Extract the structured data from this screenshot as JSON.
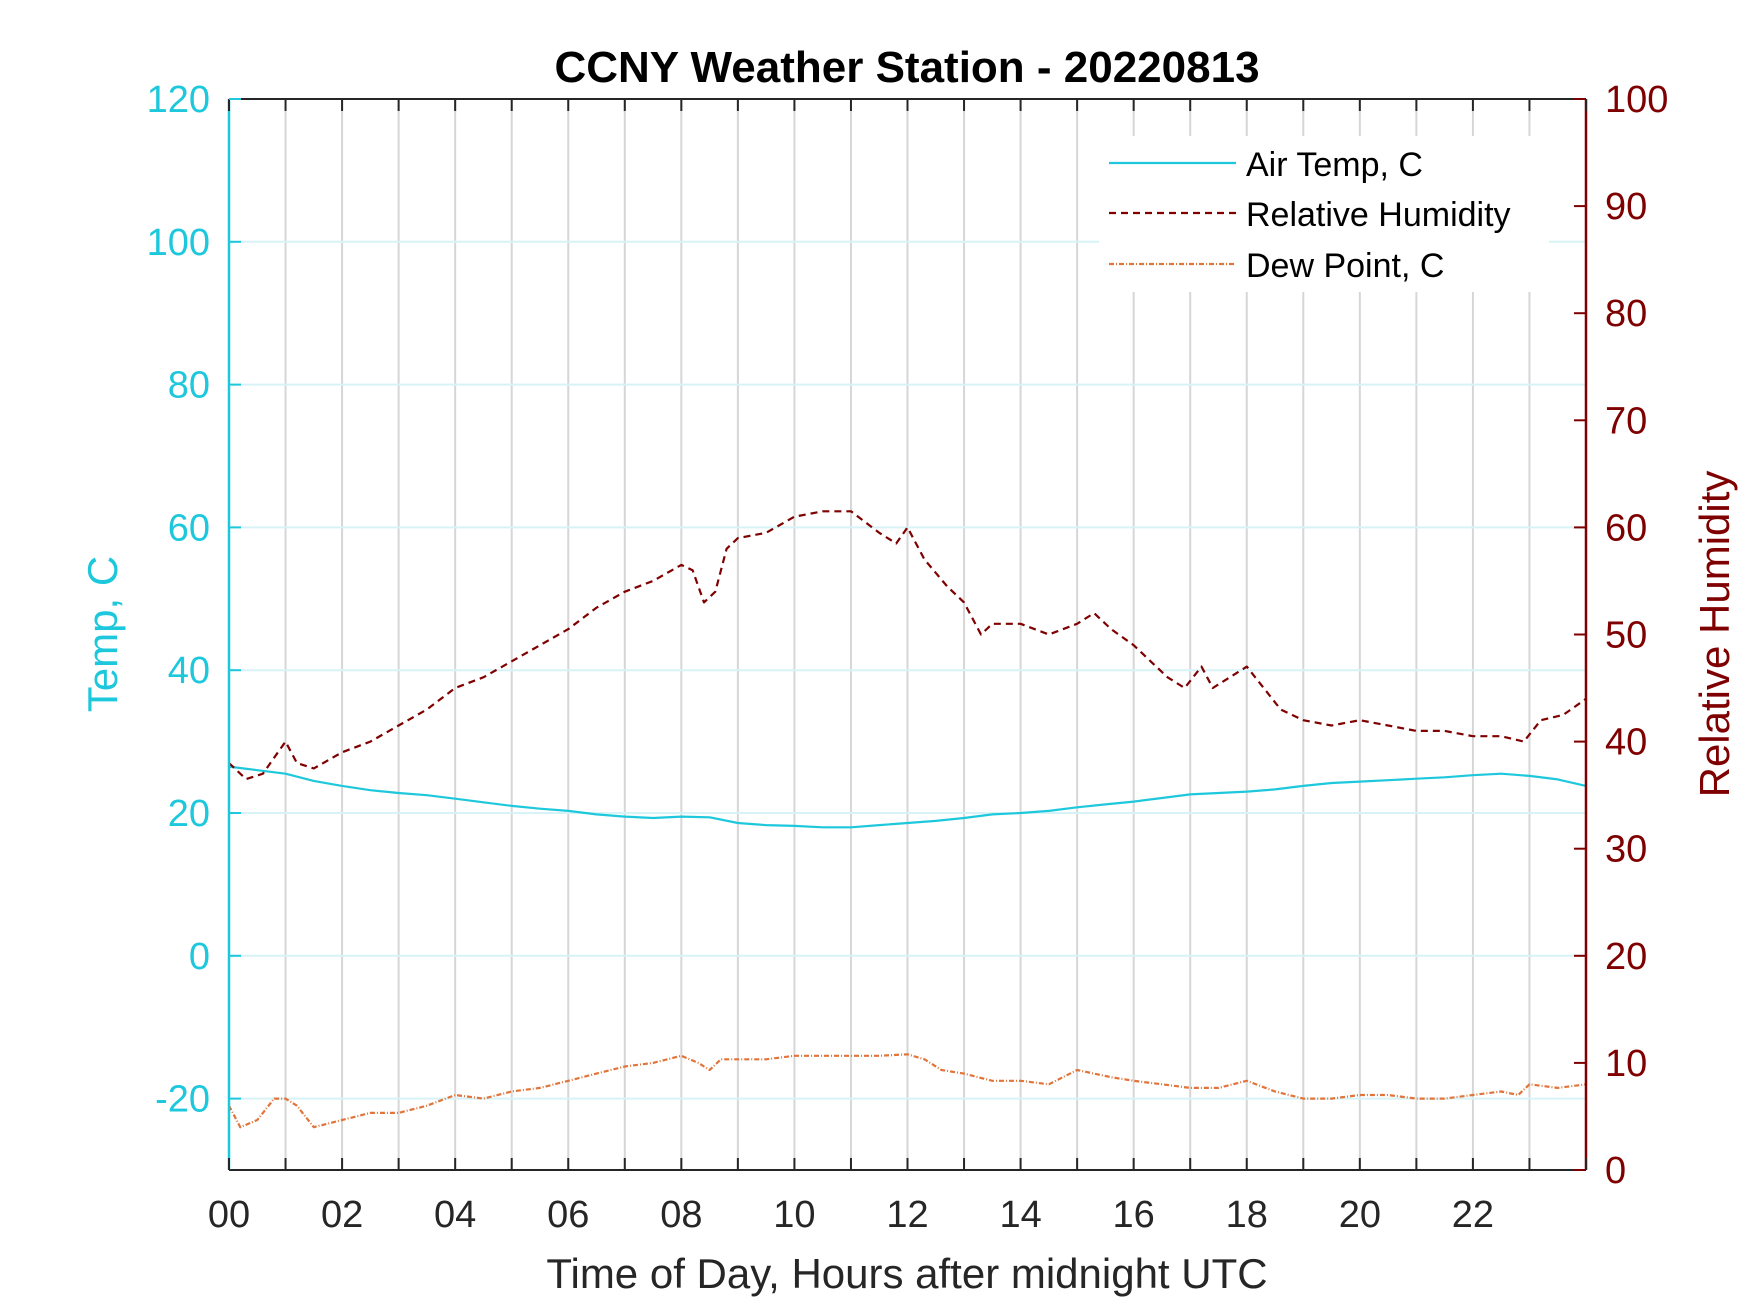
{
  "colors": {
    "air_temp": "#1ec8dc",
    "humidity": "#7f0000",
    "dew_point": "#e0743a",
    "vgrid": "#d6d6d6",
    "hgrid": "#d8f3f8",
    "axis_x": "#262626"
  },
  "chart_data": {
    "type": "line",
    "title": "CCNY Weather Station - 20220813",
    "xlabel": "Time of Day, Hours after midnight UTC",
    "ylabel_left": "Temp, C",
    "ylabel_right": "Relative Humidity",
    "xlim": [
      0,
      24
    ],
    "ylim_left": [
      -30,
      120
    ],
    "ylim_right": [
      0,
      100
    ],
    "x_ticks": [
      "00",
      "02",
      "04",
      "06",
      "08",
      "10",
      "12",
      "14",
      "16",
      "18",
      "20",
      "22"
    ],
    "y_left_ticks": [
      "-20",
      "0",
      "20",
      "40",
      "60",
      "80",
      "100",
      "120"
    ],
    "y_right_ticks": [
      "0",
      "10",
      "20",
      "30",
      "40",
      "50",
      "60",
      "70",
      "80",
      "90",
      "100"
    ],
    "grid": "vertical lines each hour, horizontal lines at left-axis ticks",
    "legend_position": "top-right",
    "series": [
      {
        "name": "Air Temp, C",
        "axis": "left",
        "style": "solid",
        "x": [
          0,
          0.5,
          1,
          1.5,
          2,
          2.5,
          3,
          3.5,
          4,
          4.5,
          5,
          5.5,
          6,
          6.5,
          7,
          7.5,
          8,
          8.5,
          9,
          9.5,
          10,
          10.5,
          11,
          11.5,
          12,
          12.5,
          13,
          13.5,
          14,
          14.5,
          15,
          15.5,
          16,
          16.5,
          17,
          17.5,
          18,
          18.5,
          19,
          19.5,
          20,
          20.5,
          21,
          21.5,
          22,
          22.5,
          23,
          23.5,
          24
        ],
        "values": [
          26.5,
          26,
          25.5,
          24.5,
          23.8,
          23.2,
          22.8,
          22.5,
          22,
          21.5,
          21,
          20.6,
          20.3,
          19.8,
          19.5,
          19.3,
          19.5,
          19.4,
          18.6,
          18.3,
          18.2,
          18,
          18,
          18.3,
          18.6,
          18.9,
          19.3,
          19.8,
          20,
          20.3,
          20.8,
          21.2,
          21.6,
          22.1,
          22.6,
          22.8,
          23,
          23.3,
          23.8,
          24.2,
          24.4,
          24.6,
          24.8,
          25,
          25.3,
          25.5,
          25.2,
          24.7,
          23.8
        ]
      },
      {
        "name": "Relative Humidity",
        "axis": "right",
        "style": "dashed",
        "x": [
          0,
          0.3,
          0.6,
          1,
          1.2,
          1.5,
          2,
          2.5,
          3,
          3.5,
          4,
          4.5,
          5,
          5.5,
          6,
          6.5,
          7,
          7.5,
          8,
          8.2,
          8.4,
          8.6,
          8.8,
          9,
          9.5,
          10,
          10.5,
          11,
          11.5,
          11.8,
          12,
          12.3,
          12.7,
          13,
          13.3,
          13.5,
          14,
          14.5,
          15,
          15.3,
          15.6,
          16,
          16.3,
          16.6,
          16.9,
          17.2,
          17.4,
          17.7,
          18,
          18.3,
          18.6,
          19,
          19.5,
          20,
          20.5,
          21,
          21.5,
          22,
          22.5,
          22.9,
          23.2,
          23.6,
          24
        ],
        "values": [
          38,
          36.5,
          37,
          40,
          38,
          37.5,
          39,
          40,
          41.5,
          43,
          45,
          46,
          47.5,
          49,
          50.5,
          52.5,
          54,
          55,
          56.5,
          56,
          53,
          54,
          58,
          59,
          59.5,
          61,
          61.5,
          61.5,
          59.5,
          58.5,
          60,
          57,
          54.5,
          53,
          50,
          51,
          51,
          50,
          51,
          52,
          50.5,
          49,
          47.5,
          46,
          45,
          47,
          45,
          46,
          47,
          45,
          43,
          42,
          41.5,
          42,
          41.5,
          41,
          41,
          40.5,
          40.5,
          40,
          42,
          42.5,
          44
        ]
      },
      {
        "name": "Dew Point, C",
        "axis": "left",
        "style": "dashdot",
        "x": [
          0,
          0.2,
          0.5,
          0.8,
          1,
          1.2,
          1.5,
          2,
          2.5,
          3,
          3.5,
          4,
          4.5,
          5,
          5.5,
          6,
          6.5,
          7,
          7.5,
          8,
          8.3,
          8.5,
          8.7,
          9,
          9.5,
          10,
          10.5,
          11,
          11.5,
          12,
          12.3,
          12.6,
          13,
          13.5,
          14,
          14.5,
          15,
          15.3,
          15.6,
          16,
          16.5,
          17,
          17.5,
          18,
          18.5,
          19,
          19.5,
          20,
          20.5,
          21,
          21.5,
          22,
          22.5,
          22.8,
          23,
          23.5,
          24
        ],
        "values": [
          -21,
          -24,
          -23,
          -20,
          -20,
          -21,
          -24,
          -23,
          -22,
          -22,
          -21,
          -19.5,
          -20,
          -19,
          -18.5,
          -17.5,
          -16.5,
          -15.5,
          -15,
          -14,
          -15,
          -16,
          -14.5,
          -14.5,
          -14.5,
          -14,
          -14,
          -14,
          -14,
          -13.8,
          -14.5,
          -16,
          -16.5,
          -17.5,
          -17.5,
          -18,
          -16,
          -16.5,
          -17,
          -17.5,
          -18,
          -18.5,
          -18.5,
          -17.5,
          -19,
          -20,
          -20,
          -19.5,
          -19.5,
          -20,
          -20,
          -19.5,
          -19,
          -19.5,
          -18,
          -18.5,
          -18
        ]
      }
    ]
  }
}
